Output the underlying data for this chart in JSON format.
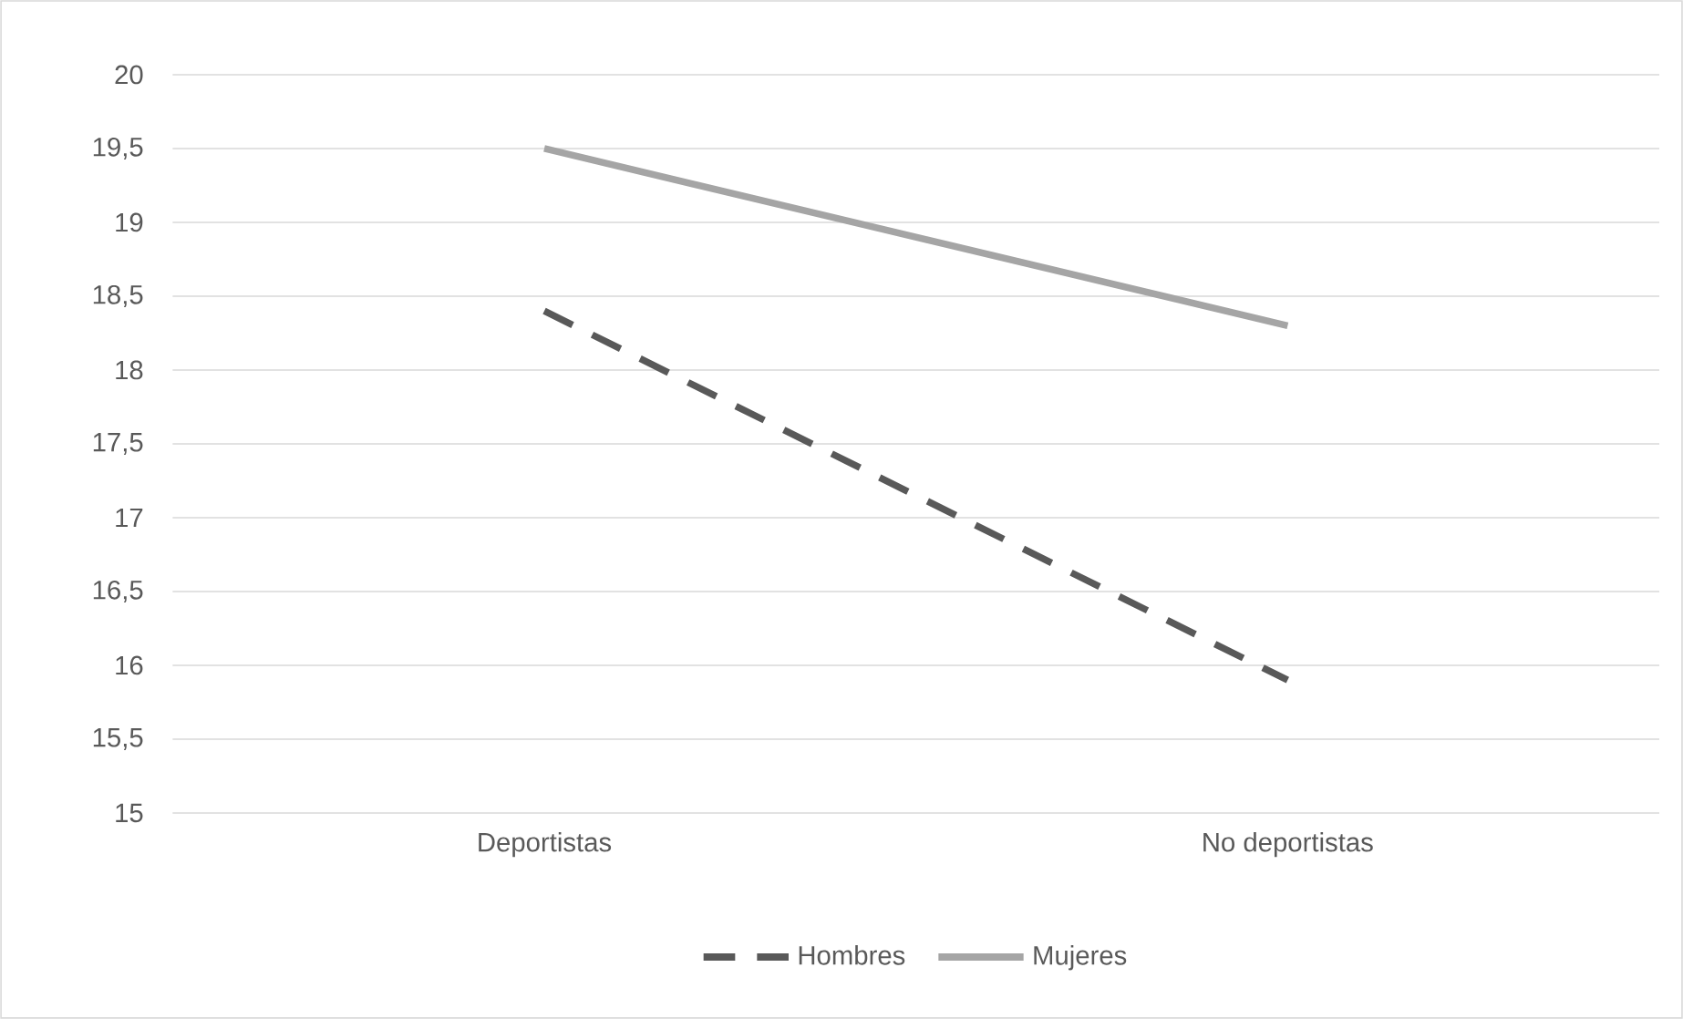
{
  "chart_data": {
    "type": "line",
    "categories": [
      "Deportistas",
      "No deportistas"
    ],
    "series": [
      {
        "name": "Hombres",
        "color": "#595959",
        "values": [
          18.4,
          15.9
        ],
        "line_style": "dashed"
      },
      {
        "name": "Mujeres",
        "color": "#a5a5a5",
        "values": [
          19.5,
          18.3
        ],
        "line_style": "solid"
      }
    ],
    "ylim": [
      15,
      20
    ],
    "yticks": [
      15,
      {
        "value": 15.5,
        "label": "15,5"
      },
      16,
      {
        "value": 16.5,
        "label": "16,5"
      },
      17,
      {
        "value": 17.5,
        "label": "17,5"
      },
      18,
      {
        "value": 18.5,
        "label": "18,5"
      },
      19,
      {
        "value": 19.5,
        "label": "19,5"
      },
      20
    ],
    "grid": "y",
    "legend": "bottom",
    "marker": "none"
  }
}
